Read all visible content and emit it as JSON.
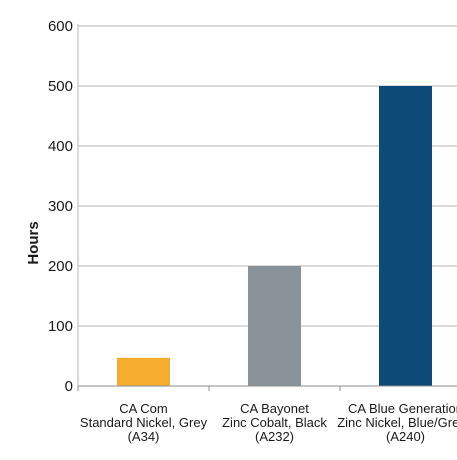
{
  "chart_data": {
    "type": "bar",
    "title": "",
    "xlabel": "",
    "ylabel": "Hours",
    "ylim": [
      0,
      600
    ],
    "yticks": [
      "0",
      "100",
      "200",
      "300",
      "400",
      "500",
      "600"
    ],
    "grid": true,
    "legend": "none",
    "categories": [
      [
        "CA Com",
        "Standard Nickel, Grey",
        "(A34)"
      ],
      [
        "CA Bayonet",
        "Zinc Cobalt, Black",
        "(A232)"
      ],
      [
        "CA Blue Generation",
        "Zinc Nickel, Blue/Green",
        "(A240)"
      ]
    ],
    "values": [
      47,
      200,
      500
    ],
    "colors": [
      "#f5ad30",
      "#8a9299",
      "#0d4a78"
    ],
    "grid_color": "#b5b5b5",
    "text_color": "#1a1a1a"
  }
}
